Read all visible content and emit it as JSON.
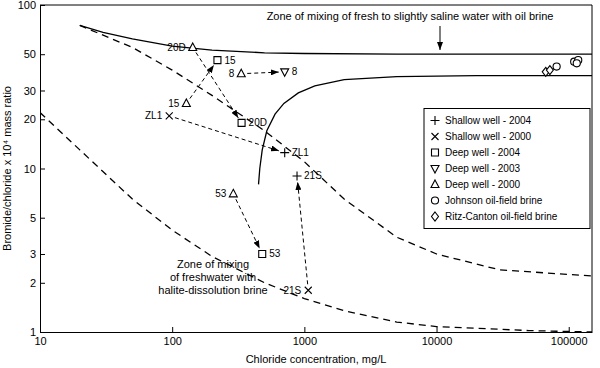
{
  "chart_data": {
    "type": "scatter",
    "log": true,
    "grid": false,
    "legend": "right",
    "x_label": "Chloride concentration, mg/L",
    "y_label": "Bromide/chloride x 10⁴ mass ratio",
    "xlim": [
      10,
      150000
    ],
    "xticks": [
      10,
      100,
      1000,
      10000,
      100000
    ],
    "ylim": [
      1,
      100
    ],
    "yticks": [
      1,
      2,
      3,
      5,
      10,
      20,
      30,
      50,
      100
    ],
    "series": [
      {
        "name": "Shallow well - 2004",
        "marker": "plus",
        "color": "#000000",
        "x": [
          710,
          880
        ],
        "values": [
          12.5,
          9
        ],
        "labels": [
          "ZL1",
          "21S"
        ]
      },
      {
        "name": "Shallow well - 2000",
        "marker": "x",
        "color": "#000000",
        "x": [
          95,
          1070
        ],
        "values": [
          21,
          1.8
        ],
        "labels": [
          "ZL1",
          "21S"
        ]
      },
      {
        "name": "Deep well - 2004",
        "marker": "square",
        "color": "#000000",
        "x": [
          220,
          335,
          480
        ],
        "values": [
          46,
          19,
          3
        ],
        "labels": [
          "15",
          "20D",
          "53"
        ]
      },
      {
        "name": "Deep well - 2003",
        "marker": "triangle-down",
        "color": "#000000",
        "x": [
          710
        ],
        "values": [
          39
        ],
        "labels": [
          "8"
        ]
      },
      {
        "name": "Deep well - 2000",
        "marker": "triangle",
        "color": "#000000",
        "x": [
          143,
          128,
          333,
          290
        ],
        "values": [
          55,
          25,
          38,
          7
        ],
        "labels": [
          "20D",
          "15",
          "8",
          "53"
        ]
      },
      {
        "name": "Johnson oil-field brine",
        "marker": "circle",
        "color": "#000000",
        "x": [
          81000,
          110000,
          118000,
          115000
        ],
        "values": [
          42,
          45,
          46,
          44
        ]
      },
      {
        "name": "Ritz-Canton oil-field brine",
        "marker": "diamond",
        "color": "#000000",
        "x": [
          67000,
          72000
        ],
        "values": [
          39,
          40
        ]
      },
      {
        "type": "line",
        "line_style": "solid",
        "color": "#000000",
        "x": [
          20,
          30,
          50,
          100,
          200,
          500,
          1000,
          5000,
          20000,
          100000,
          150000
        ],
        "values": [
          75,
          68,
          62,
          56,
          53,
          51,
          50.5,
          50,
          50,
          50,
          50
        ]
      },
      {
        "type": "line",
        "line_style": "solid",
        "color": "#000000",
        "x": [
          450,
          460,
          480,
          520,
          600,
          700,
          900,
          1200,
          2000,
          5000,
          20000,
          150000
        ],
        "values": [
          8,
          10,
          13,
          17,
          21.5,
          25,
          29,
          32,
          35,
          36.5,
          37,
          37
        ]
      },
      {
        "type": "line",
        "line_style": "dashed",
        "color": "#000000",
        "x": [
          20,
          50,
          100,
          200,
          500,
          1000,
          2000,
          5000,
          10000,
          30000,
          150000
        ],
        "values": [
          75,
          55,
          40,
          28,
          17,
          11,
          6.5,
          3.8,
          3,
          2.4,
          2.2
        ]
      },
      {
        "type": "line",
        "line_style": "dashed",
        "color": "#000000",
        "x": [
          10,
          20,
          50,
          100,
          200,
          500,
          1000,
          2000,
          5000,
          10000,
          50000,
          150000
        ],
        "values": [
          22,
          13,
          6.5,
          4.2,
          2.9,
          2,
          1.6,
          1.35,
          1.15,
          1.08,
          1.02,
          1
        ]
      }
    ],
    "annotations": [
      {
        "text": [
          "Zone of mixing of fresh to slightly saline water with oil brine"
        ]
      },
      {
        "text": [
          "Zone of mixing",
          "of freshwater with",
          "halite-dissolution brine"
        ]
      }
    ]
  }
}
